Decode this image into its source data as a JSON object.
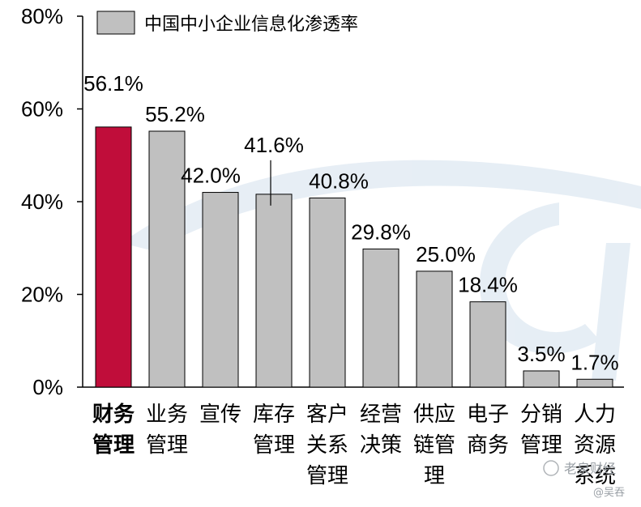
{
  "chart_data": {
    "type": "bar",
    "categories": [
      [
        "财务",
        "管理"
      ],
      [
        "业务",
        "管理"
      ],
      [
        "宣传"
      ],
      [
        "库存",
        "管理"
      ],
      [
        "客户",
        "关系",
        "管理"
      ],
      [
        "经营",
        "决策"
      ],
      [
        "供应",
        "链管",
        "理"
      ],
      [
        "电子",
        "商务"
      ],
      [
        "分销",
        "管理"
      ],
      [
        "人力",
        "资源",
        "系统"
      ]
    ],
    "values": [
      56.1,
      55.2,
      42.0,
      41.6,
      40.8,
      29.8,
      25.0,
      18.4,
      3.5,
      1.7
    ],
    "value_labels": [
      "56.1%",
      "55.2%",
      "42.0%",
      "41.6%",
      "40.8%",
      "29.8%",
      "25.0%",
      "18.4%",
      "3.5%",
      "1.7%"
    ],
    "series": [
      {
        "name": "中国中小企业信息化渗透率",
        "values": [
          56.1,
          55.2,
          42.0,
          41.6,
          40.8,
          29.8,
          25.0,
          18.4,
          3.5,
          1.7
        ]
      }
    ],
    "highlight_index": 0,
    "yticks": [
      "0%",
      "20%",
      "40%",
      "60%",
      "80%"
    ],
    "ylim": [
      0,
      80
    ],
    "grid": false,
    "legend_position": "top-left",
    "colors": {
      "bar": "#c0c0c0",
      "bar_edge": "#000000",
      "highlight": "#c00d3a",
      "highlight_label": "#1f6fb5",
      "label": "#000000"
    }
  },
  "watermark": {
    "text": "老泉财经",
    "sub": "@吴吞"
  }
}
